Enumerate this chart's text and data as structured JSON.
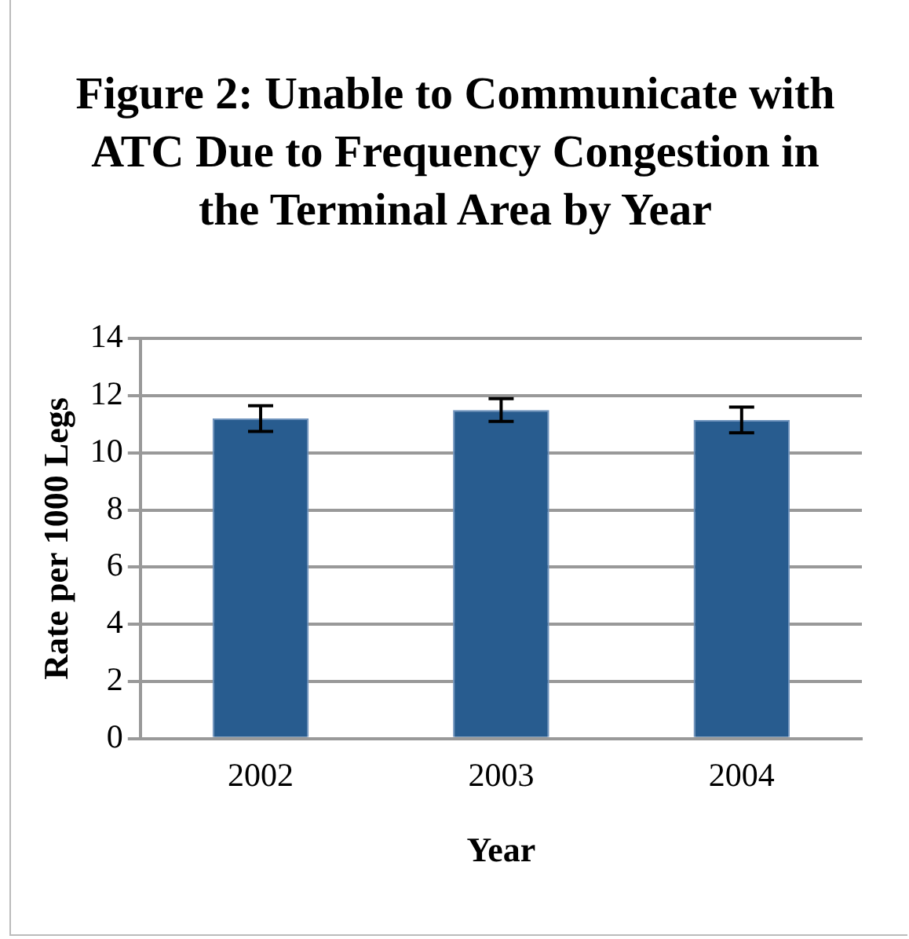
{
  "chart_data": {
    "type": "bar",
    "title": "Figure 2: Unable to Communicate with ATC Due to Frequency Congestion in the Terminal Area by Year",
    "xlabel": "Year",
    "ylabel": "Rate per 1000 Legs",
    "categories": [
      "2002",
      "2003",
      "2004"
    ],
    "values": [
      11.2,
      11.5,
      11.15
    ],
    "errors": [
      0.45,
      0.4,
      0.45
    ],
    "color": "#285c8f",
    "ylim": [
      0,
      14
    ],
    "yticks": [
      0,
      2,
      4,
      6,
      8,
      10,
      12,
      14
    ],
    "grid": "y"
  }
}
